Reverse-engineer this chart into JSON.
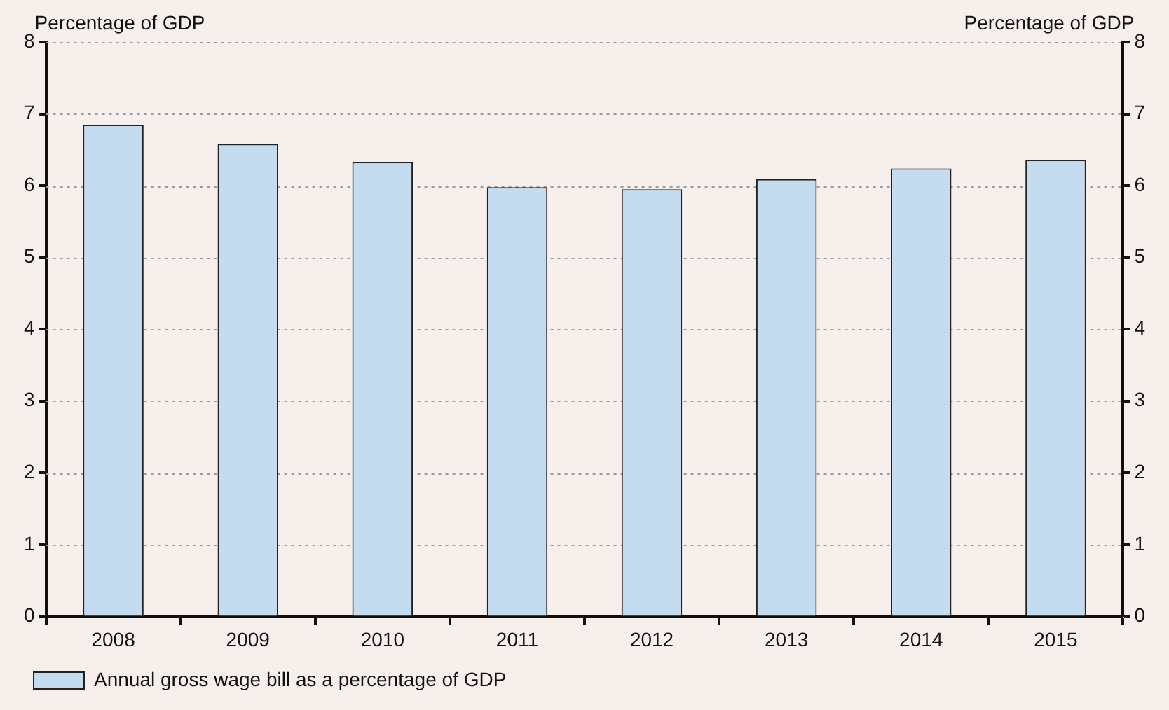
{
  "chart_data": {
    "type": "bar",
    "ylabel": "Percentage of GDP",
    "y2label": "Percentage of GDP",
    "categories": [
      "2008",
      "2009",
      "2010",
      "2011",
      "2012",
      "2013",
      "2014",
      "2015"
    ],
    "series": [
      {
        "name": "Annual gross wage bill as a percentage of GDP",
        "color": "#c5dcf0",
        "values": [
          6.85,
          6.58,
          6.33,
          5.98,
          5.95,
          6.09,
          6.24,
          6.36
        ]
      }
    ],
    "ylim": [
      0,
      8
    ],
    "yticks": [
      0,
      1,
      2,
      3,
      4,
      5,
      6,
      7,
      8
    ],
    "y2lim": [
      0,
      8
    ],
    "y2ticks": [
      0,
      1,
      2,
      3,
      4,
      5,
      6,
      7,
      8
    ],
    "grid": "y",
    "legend": "bottom left"
  }
}
